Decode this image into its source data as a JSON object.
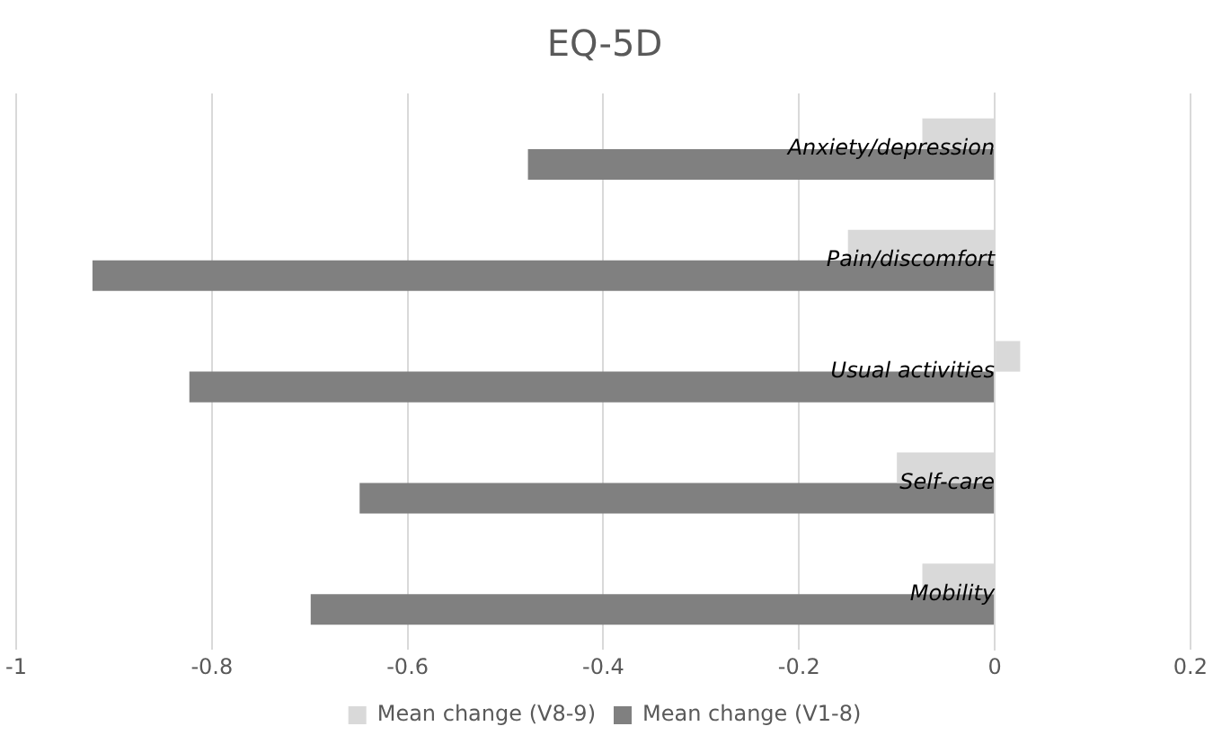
{
  "chart_data": {
    "type": "bar",
    "orientation": "horizontal",
    "title": "EQ-5D",
    "categories": [
      "Anxiety/depression",
      "Pain/discomfort",
      "Usual activities",
      "Self-care",
      "Mobility"
    ],
    "series": [
      {
        "name": "Mean change (V8-9)",
        "color": "#d9d9d9",
        "values": [
          -0.074,
          -0.15,
          0.026,
          -0.1,
          -0.074
        ]
      },
      {
        "name": "Mean change (V1-8)",
        "color": "#808080",
        "values": [
          -0.477,
          -0.922,
          -0.823,
          -0.649,
          -0.699
        ]
      }
    ],
    "xlim": [
      -1,
      0.2
    ],
    "xticks": [
      -1,
      -0.8,
      -0.6,
      -0.4,
      -0.2,
      0,
      0.2
    ],
    "grid": "x",
    "legend": "bottom"
  }
}
